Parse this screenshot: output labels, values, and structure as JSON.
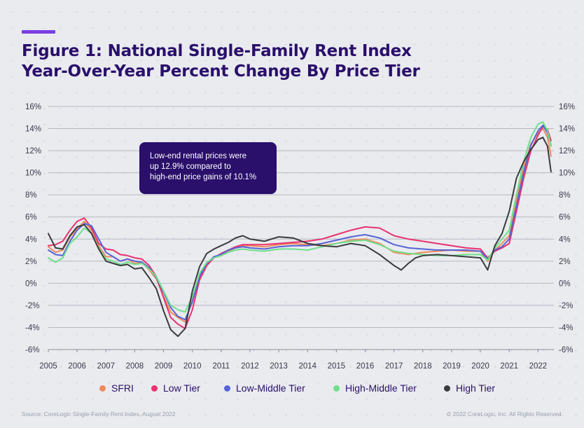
{
  "title_lines": [
    "Figure 1: National Single-Family Rent Index",
    "Year-Over-Year Percent Change By Price Tier"
  ],
  "callout_lines": [
    "Low-end rental prices were",
    "up 12.9% compared to",
    "high-end price gains of 10.1%"
  ],
  "source": "Source: CoreLogic Single-Family Rent Index, August 2022",
  "copyright": "© 2022 CoreLogic, Inc. All Rights Reserved.",
  "colors": {
    "title": "#2a0f6b",
    "accent": "#7b3fe4",
    "callout_bg": "#2a0f6b"
  },
  "chart_data": {
    "type": "line",
    "title": "Figure 1: National Single-Family Rent Index Year-Over-Year Percent Change By Price Tier",
    "xlabel": "",
    "ylabel": "",
    "xlim": [
      2005,
      2022.55
    ],
    "ylim": [
      -6,
      16
    ],
    "x_ticks": [
      "2005",
      "2006",
      "2007",
      "2008",
      "2009",
      "2010",
      "2011",
      "2012",
      "2013",
      "2014",
      "2015",
      "2016",
      "2017",
      "2018",
      "2019",
      "2020",
      "2021",
      "2022"
    ],
    "y_ticks": [
      "-6%",
      "-4%",
      "-2%",
      "0%",
      "2%",
      "4%",
      "6%",
      "8%",
      "10%",
      "12%",
      "14%",
      "16%"
    ],
    "grid": "horizontal",
    "y_axis_both_sides": true,
    "legend_position": "bottom",
    "series": [
      {
        "name": "SFRI",
        "color": "#f08a5b",
        "points": [
          [
            2005,
            3.3
          ],
          [
            2005.25,
            2.8
          ],
          [
            2005.5,
            3.0
          ],
          [
            2005.75,
            4.2
          ],
          [
            2006,
            4.9
          ],
          [
            2006.25,
            5.6
          ],
          [
            2006.5,
            4.8
          ],
          [
            2006.75,
            3.4
          ],
          [
            2007,
            2.4
          ],
          [
            2007.25,
            2.4
          ],
          [
            2007.5,
            2.0
          ],
          [
            2007.75,
            2.2
          ],
          [
            2008,
            1.8
          ],
          [
            2008.25,
            1.9
          ],
          [
            2008.5,
            1.2
          ],
          [
            2008.75,
            0.4
          ],
          [
            2009,
            -1.2
          ],
          [
            2009.25,
            -2.6
          ],
          [
            2009.5,
            -3.1
          ],
          [
            2009.75,
            -3.5
          ],
          [
            2010,
            -1.5
          ],
          [
            2010.25,
            0.8
          ],
          [
            2010.5,
            1.8
          ],
          [
            2010.75,
            2.3
          ],
          [
            2011,
            2.5
          ],
          [
            2011.25,
            2.9
          ],
          [
            2011.5,
            3.2
          ],
          [
            2011.75,
            3.4
          ],
          [
            2012,
            3.4
          ],
          [
            2012.5,
            3.3
          ],
          [
            2013,
            3.5
          ],
          [
            2013.5,
            3.6
          ],
          [
            2014,
            3.5
          ],
          [
            2014.5,
            3.4
          ],
          [
            2015,
            3.6
          ],
          [
            2015.5,
            3.9
          ],
          [
            2016,
            4.0
          ],
          [
            2016.5,
            3.6
          ],
          [
            2017,
            2.8
          ],
          [
            2017.5,
            2.6
          ],
          [
            2018,
            2.8
          ],
          [
            2018.5,
            2.9
          ],
          [
            2019,
            3.0
          ],
          [
            2019.5,
            2.9
          ],
          [
            2020,
            2.9
          ],
          [
            2020.25,
            2.0
          ],
          [
            2020.5,
            3.0
          ],
          [
            2020.75,
            3.6
          ],
          [
            2021,
            4.3
          ],
          [
            2021.25,
            7.5
          ],
          [
            2021.5,
            10.5
          ],
          [
            2021.75,
            12.6
          ],
          [
            2022,
            13.6
          ],
          [
            2022.17,
            14.0
          ],
          [
            2022.33,
            13.2
          ],
          [
            2022.45,
            11.5
          ]
        ]
      },
      {
        "name": "Low Tier",
        "color": "#e9326e",
        "points": [
          [
            2005,
            3.4
          ],
          [
            2005.25,
            3.5
          ],
          [
            2005.5,
            3.8
          ],
          [
            2005.75,
            4.8
          ],
          [
            2006,
            5.6
          ],
          [
            2006.25,
            5.9
          ],
          [
            2006.5,
            5.0
          ],
          [
            2006.75,
            3.6
          ],
          [
            2007,
            3.1
          ],
          [
            2007.25,
            3.0
          ],
          [
            2007.5,
            2.6
          ],
          [
            2007.75,
            2.5
          ],
          [
            2008,
            2.3
          ],
          [
            2008.25,
            2.2
          ],
          [
            2008.5,
            1.6
          ],
          [
            2008.75,
            0.6
          ],
          [
            2009,
            -1.3
          ],
          [
            2009.25,
            -3.1
          ],
          [
            2009.5,
            -3.7
          ],
          [
            2009.75,
            -4.1
          ],
          [
            2010,
            -2.4
          ],
          [
            2010.25,
            0.3
          ],
          [
            2010.5,
            1.6
          ],
          [
            2010.75,
            2.3
          ],
          [
            2011,
            2.7
          ],
          [
            2011.25,
            3.0
          ],
          [
            2011.5,
            3.3
          ],
          [
            2011.75,
            3.5
          ],
          [
            2012,
            3.5
          ],
          [
            2012.5,
            3.5
          ],
          [
            2013,
            3.6
          ],
          [
            2013.5,
            3.7
          ],
          [
            2014,
            3.8
          ],
          [
            2014.5,
            4.0
          ],
          [
            2015,
            4.4
          ],
          [
            2015.5,
            4.8
          ],
          [
            2016,
            5.1
          ],
          [
            2016.5,
            5.0
          ],
          [
            2017,
            4.3
          ],
          [
            2017.5,
            4.0
          ],
          [
            2018,
            3.8
          ],
          [
            2018.5,
            3.6
          ],
          [
            2019,
            3.4
          ],
          [
            2019.5,
            3.2
          ],
          [
            2020,
            3.1
          ],
          [
            2020.25,
            2.3
          ],
          [
            2020.5,
            2.9
          ],
          [
            2020.75,
            3.2
          ],
          [
            2021,
            3.6
          ],
          [
            2021.25,
            6.5
          ],
          [
            2021.5,
            9.5
          ],
          [
            2021.75,
            12.0
          ],
          [
            2022,
            13.4
          ],
          [
            2022.17,
            14.2
          ],
          [
            2022.33,
            13.9
          ],
          [
            2022.45,
            12.9
          ]
        ]
      },
      {
        "name": "Low-Middle Tier",
        "color": "#5763d6",
        "points": [
          [
            2005,
            3.0
          ],
          [
            2005.25,
            2.6
          ],
          [
            2005.5,
            2.5
          ],
          [
            2005.75,
            3.8
          ],
          [
            2006,
            4.8
          ],
          [
            2006.25,
            5.4
          ],
          [
            2006.5,
            5.2
          ],
          [
            2006.75,
            4.0
          ],
          [
            2007,
            2.8
          ],
          [
            2007.25,
            2.4
          ],
          [
            2007.5,
            2.0
          ],
          [
            2007.75,
            2.2
          ],
          [
            2008,
            2.0
          ],
          [
            2008.25,
            1.9
          ],
          [
            2008.5,
            1.4
          ],
          [
            2008.75,
            0.5
          ],
          [
            2009,
            -0.8
          ],
          [
            2009.25,
            -2.2
          ],
          [
            2009.5,
            -3.0
          ],
          [
            2009.75,
            -3.3
          ],
          [
            2010,
            -1.7
          ],
          [
            2010.25,
            0.6
          ],
          [
            2010.5,
            1.8
          ],
          [
            2010.75,
            2.4
          ],
          [
            2011,
            2.6
          ],
          [
            2011.25,
            3.0
          ],
          [
            2011.5,
            3.2
          ],
          [
            2011.75,
            3.3
          ],
          [
            2012,
            3.2
          ],
          [
            2012.5,
            3.1
          ],
          [
            2013,
            3.3
          ],
          [
            2013.5,
            3.4
          ],
          [
            2014,
            3.4
          ],
          [
            2014.5,
            3.6
          ],
          [
            2015,
            3.9
          ],
          [
            2015.5,
            4.2
          ],
          [
            2016,
            4.4
          ],
          [
            2016.5,
            4.1
          ],
          [
            2017,
            3.5
          ],
          [
            2017.5,
            3.2
          ],
          [
            2018,
            3.1
          ],
          [
            2018.5,
            3.0
          ],
          [
            2019,
            3.0
          ],
          [
            2019.5,
            3.0
          ],
          [
            2020,
            2.9
          ],
          [
            2020.25,
            2.2
          ],
          [
            2020.5,
            3.0
          ],
          [
            2020.75,
            3.3
          ],
          [
            2021,
            4.0
          ],
          [
            2021.25,
            7.0
          ],
          [
            2021.5,
            10.0
          ],
          [
            2021.75,
            12.5
          ],
          [
            2022,
            13.8
          ],
          [
            2022.17,
            14.3
          ],
          [
            2022.33,
            13.6
          ],
          [
            2022.45,
            12.5
          ]
        ]
      },
      {
        "name": "High-Middle Tier",
        "color": "#6ee08a",
        "points": [
          [
            2005,
            2.3
          ],
          [
            2005.25,
            1.9
          ],
          [
            2005.5,
            2.3
          ],
          [
            2005.75,
            3.6
          ],
          [
            2006,
            4.2
          ],
          [
            2006.25,
            5.0
          ],
          [
            2006.5,
            4.5
          ],
          [
            2006.75,
            3.2
          ],
          [
            2007,
            2.2
          ],
          [
            2007.25,
            2.0
          ],
          [
            2007.5,
            1.7
          ],
          [
            2007.75,
            1.9
          ],
          [
            2008,
            1.7
          ],
          [
            2008.25,
            1.8
          ],
          [
            2008.5,
            1.3
          ],
          [
            2008.75,
            0.6
          ],
          [
            2009,
            -0.7
          ],
          [
            2009.25,
            -2.0
          ],
          [
            2009.5,
            -2.4
          ],
          [
            2009.75,
            -2.6
          ],
          [
            2010,
            -1.2
          ],
          [
            2010.25,
            0.9
          ],
          [
            2010.5,
            1.9
          ],
          [
            2010.75,
            2.3
          ],
          [
            2011,
            2.5
          ],
          [
            2011.25,
            2.8
          ],
          [
            2011.5,
            3.0
          ],
          [
            2011.75,
            3.1
          ],
          [
            2012,
            3.0
          ],
          [
            2012.5,
            2.9
          ],
          [
            2013,
            3.1
          ],
          [
            2013.5,
            3.1
          ],
          [
            2014,
            3.0
          ],
          [
            2014.5,
            3.3
          ],
          [
            2015,
            3.6
          ],
          [
            2015.5,
            3.8
          ],
          [
            2016,
            3.9
          ],
          [
            2016.5,
            3.5
          ],
          [
            2017,
            2.9
          ],
          [
            2017.5,
            2.7
          ],
          [
            2018,
            2.6
          ],
          [
            2018.5,
            2.5
          ],
          [
            2019,
            2.5
          ],
          [
            2019.5,
            2.6
          ],
          [
            2020,
            2.6
          ],
          [
            2020.25,
            2.1
          ],
          [
            2020.5,
            3.2
          ],
          [
            2020.75,
            4.0
          ],
          [
            2021,
            4.8
          ],
          [
            2021.25,
            8.0
          ],
          [
            2021.5,
            11.0
          ],
          [
            2021.75,
            13.2
          ],
          [
            2022,
            14.4
          ],
          [
            2022.17,
            14.6
          ],
          [
            2022.33,
            13.8
          ],
          [
            2022.45,
            12.4
          ]
        ]
      },
      {
        "name": "High Tier",
        "color": "#3b3b3f",
        "points": [
          [
            2005,
            4.5
          ],
          [
            2005.25,
            3.2
          ],
          [
            2005.5,
            3.1
          ],
          [
            2005.75,
            4.3
          ],
          [
            2006,
            5.1
          ],
          [
            2006.25,
            5.3
          ],
          [
            2006.5,
            4.5
          ],
          [
            2006.75,
            3.1
          ],
          [
            2007,
            2.0
          ],
          [
            2007.25,
            1.8
          ],
          [
            2007.5,
            1.6
          ],
          [
            2007.75,
            1.7
          ],
          [
            2008,
            1.3
          ],
          [
            2008.25,
            1.4
          ],
          [
            2008.5,
            0.5
          ],
          [
            2008.75,
            -0.5
          ],
          [
            2009,
            -2.5
          ],
          [
            2009.25,
            -4.2
          ],
          [
            2009.5,
            -4.8
          ],
          [
            2009.75,
            -4.1
          ],
          [
            2010,
            -0.7
          ],
          [
            2010.25,
            1.5
          ],
          [
            2010.5,
            2.7
          ],
          [
            2010.75,
            3.1
          ],
          [
            2011,
            3.4
          ],
          [
            2011.25,
            3.7
          ],
          [
            2011.5,
            4.1
          ],
          [
            2011.75,
            4.3
          ],
          [
            2012,
            4.0
          ],
          [
            2012.5,
            3.8
          ],
          [
            2013,
            4.2
          ],
          [
            2013.5,
            4.1
          ],
          [
            2014,
            3.6
          ],
          [
            2014.5,
            3.4
          ],
          [
            2015,
            3.3
          ],
          [
            2015.5,
            3.6
          ],
          [
            2016,
            3.4
          ],
          [
            2016.5,
            2.6
          ],
          [
            2017,
            1.6
          ],
          [
            2017.25,
            1.2
          ],
          [
            2017.5,
            1.8
          ],
          [
            2017.75,
            2.3
          ],
          [
            2018,
            2.5
          ],
          [
            2018.5,
            2.6
          ],
          [
            2019,
            2.5
          ],
          [
            2019.5,
            2.4
          ],
          [
            2020,
            2.3
          ],
          [
            2020.25,
            1.2
          ],
          [
            2020.5,
            3.4
          ],
          [
            2020.75,
            4.5
          ],
          [
            2021,
            6.5
          ],
          [
            2021.25,
            9.5
          ],
          [
            2021.5,
            11.0
          ],
          [
            2021.75,
            12.1
          ],
          [
            2022,
            13.0
          ],
          [
            2022.17,
            13.2
          ],
          [
            2022.33,
            12.4
          ],
          [
            2022.45,
            10.1
          ]
        ]
      }
    ],
    "annotations": [
      "Low-end rental prices were up 12.9% compared to high-end price gains of 10.1%"
    ]
  }
}
